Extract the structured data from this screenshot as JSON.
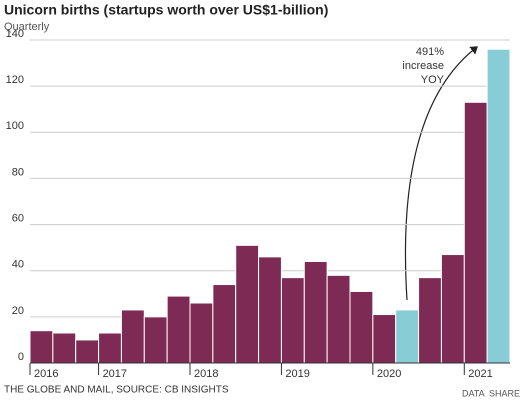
{
  "chart_data": {
    "type": "bar",
    "title": "Unicorn births (startups worth over US$1-billion)",
    "subtitle": "Quarterly",
    "source": "THE GLOBE AND MAIL, SOURCE: CB INSIGHTS",
    "footer_links": [
      "DATA",
      "SHARE"
    ],
    "annotation": [
      "491%",
      "increase",
      "YOY"
    ],
    "categories": [
      "2016",
      null,
      null,
      "2017",
      null,
      null,
      null,
      "2018",
      null,
      null,
      null,
      "2019",
      null,
      null,
      null,
      "2020",
      null,
      null,
      null,
      "2021",
      null
    ],
    "values": [
      14,
      13,
      10,
      13,
      23,
      20,
      29,
      26,
      34,
      51,
      46,
      37,
      44,
      38,
      31,
      21,
      23,
      37,
      47,
      113,
      136
    ],
    "colors": [
      "#7d2a54",
      "#7d2a54",
      "#7d2a54",
      "#7d2a54",
      "#7d2a54",
      "#7d2a54",
      "#7d2a54",
      "#7d2a54",
      "#7d2a54",
      "#7d2a54",
      "#7d2a54",
      "#7d2a54",
      "#7d2a54",
      "#7d2a54",
      "#7d2a54",
      "#7d2a54",
      "#88ccd6",
      "#7d2a54",
      "#7d2a54",
      "#7d2a54",
      "#88ccd6"
    ],
    "ylim": [
      0,
      140
    ],
    "yticks": [
      0,
      20,
      40,
      60,
      80,
      100,
      120,
      140
    ],
    "grid": true
  }
}
